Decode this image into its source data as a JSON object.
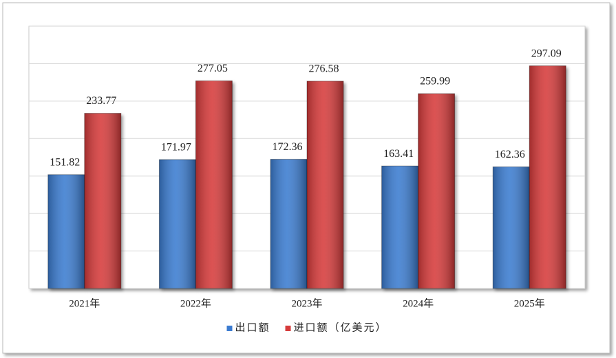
{
  "chart_data": {
    "type": "bar",
    "categories": [
      "2021年",
      "2022年",
      "2023年",
      "2024年",
      "2025年"
    ],
    "series": [
      {
        "name": "出口额",
        "color": "#3b7bd0",
        "values": [
          151.82,
          171.97,
          172.36,
          163.41,
          162.36
        ]
      },
      {
        "name": "进口额（亿美元）",
        "color": "#d63b3b",
        "values": [
          233.77,
          277.05,
          276.58,
          259.99,
          297.09
        ]
      }
    ],
    "ylim": [
      0,
      350
    ],
    "yticks": [
      0,
      50,
      100,
      150,
      200,
      250,
      300,
      350
    ],
    "grid": true,
    "legend": "bottom"
  }
}
